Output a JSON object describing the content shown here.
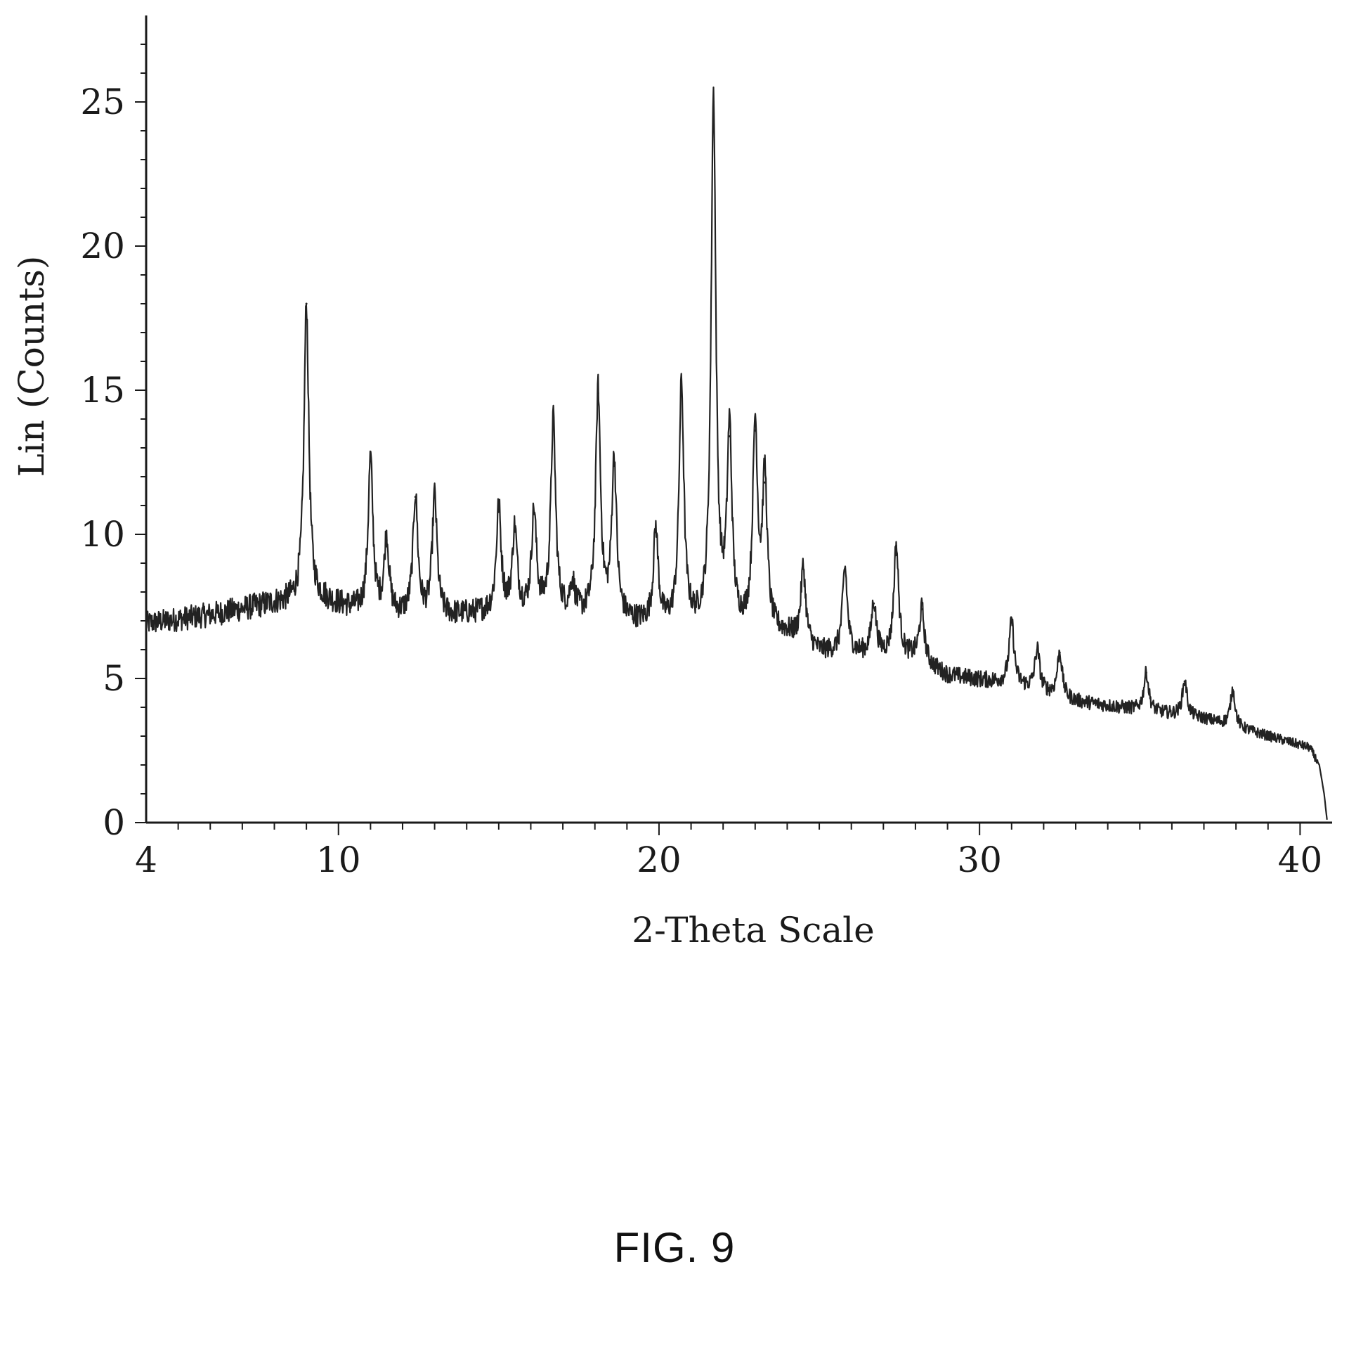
{
  "figure": {
    "caption": "FIG. 9"
  },
  "chart_data": {
    "type": "line",
    "title": "",
    "xlabel": "2-Theta Scale",
    "ylabel": "Lin (Counts)",
    "xlim": [
      4,
      41
    ],
    "ylim": [
      0,
      28
    ],
    "x_ticks": [
      4,
      10,
      20,
      30,
      40
    ],
    "y_ticks": [
      0,
      5,
      10,
      15,
      20,
      25
    ],
    "grid": false,
    "line_color": "#222222",
    "baseline": [
      [
        4.0,
        6.9
      ],
      [
        6.0,
        7.2
      ],
      [
        8.0,
        7.6
      ],
      [
        9.5,
        7.7
      ],
      [
        11.0,
        7.2
      ],
      [
        13.0,
        7.1
      ],
      [
        15.0,
        7.3
      ],
      [
        18.0,
        7.1
      ],
      [
        20.0,
        6.8
      ],
      [
        22.0,
        6.7
      ],
      [
        24.0,
        6.5
      ],
      [
        25.0,
        5.9
      ],
      [
        26.5,
        5.8
      ],
      [
        28.0,
        5.7
      ],
      [
        29.0,
        5.1
      ],
      [
        31.0,
        4.8
      ],
      [
        33.0,
        4.2
      ],
      [
        35.0,
        3.9
      ],
      [
        37.0,
        3.6
      ],
      [
        39.0,
        3.0
      ],
      [
        40.3,
        2.6
      ],
      [
        40.6,
        2.0
      ],
      [
        40.75,
        1.0
      ],
      [
        40.85,
        0
      ]
    ],
    "peaks": [
      {
        "x": 9.0,
        "y": 18.0
      },
      {
        "x": 11.0,
        "y": 12.6
      },
      {
        "x": 11.5,
        "y": 9.8
      },
      {
        "x": 12.4,
        "y": 11.3
      },
      {
        "x": 13.0,
        "y": 11.3
      },
      {
        "x": 15.0,
        "y": 10.9
      },
      {
        "x": 15.5,
        "y": 10.1
      },
      {
        "x": 16.1,
        "y": 10.7
      },
      {
        "x": 16.7,
        "y": 13.9
      },
      {
        "x": 17.3,
        "y": 8.2
      },
      {
        "x": 18.1,
        "y": 14.9
      },
      {
        "x": 18.6,
        "y": 12.5
      },
      {
        "x": 19.9,
        "y": 10.1
      },
      {
        "x": 20.7,
        "y": 15.1
      },
      {
        "x": 21.7,
        "y": 25.0
      },
      {
        "x": 22.2,
        "y": 13.4
      },
      {
        "x": 23.0,
        "y": 13.6
      },
      {
        "x": 23.3,
        "y": 11.8
      },
      {
        "x": 24.5,
        "y": 8.8
      },
      {
        "x": 25.8,
        "y": 8.8
      },
      {
        "x": 26.7,
        "y": 7.6
      },
      {
        "x": 27.4,
        "y": 9.6
      },
      {
        "x": 28.2,
        "y": 7.4
      },
      {
        "x": 31.0,
        "y": 7.0
      },
      {
        "x": 31.8,
        "y": 6.0
      },
      {
        "x": 32.5,
        "y": 5.9
      },
      {
        "x": 35.2,
        "y": 5.2
      },
      {
        "x": 36.4,
        "y": 4.9
      },
      {
        "x": 37.9,
        "y": 4.6
      }
    ]
  }
}
